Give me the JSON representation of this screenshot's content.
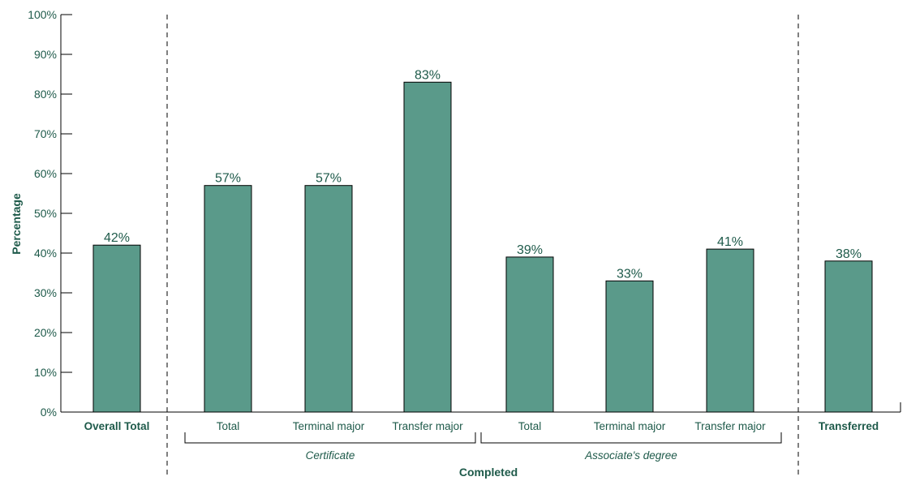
{
  "chart_data": {
    "type": "bar",
    "ylabel": "Percentage",
    "ylim": [
      0,
      100
    ],
    "yticks": [
      "0%",
      "10%",
      "20%",
      "30%",
      "40%",
      "50%",
      "60%",
      "70%",
      "80%",
      "90%",
      "100%"
    ],
    "grid": false,
    "bar_color": "#5a9a8a",
    "text_color": "#1e5a4a",
    "categories": [
      "Overall Total",
      "Total",
      "Terminal major",
      "Transfer major",
      "Total",
      "Terminal major",
      "Transfer major",
      "Transferred"
    ],
    "values": [
      42,
      57,
      57,
      83,
      39,
      33,
      41,
      38
    ],
    "data_labels": [
      "42%",
      "57%",
      "57%",
      "83%",
      "39%",
      "33%",
      "41%",
      "38%"
    ],
    "bold_categories": [
      0,
      7
    ],
    "groups": [
      {
        "label": "Certificate",
        "categories": [
          1,
          2,
          3
        ]
      },
      {
        "label": "Associate's degree",
        "categories": [
          4,
          5,
          6
        ]
      }
    ],
    "super_group": {
      "label": "Completed",
      "categories": [
        1,
        2,
        3,
        4,
        5,
        6
      ]
    }
  }
}
